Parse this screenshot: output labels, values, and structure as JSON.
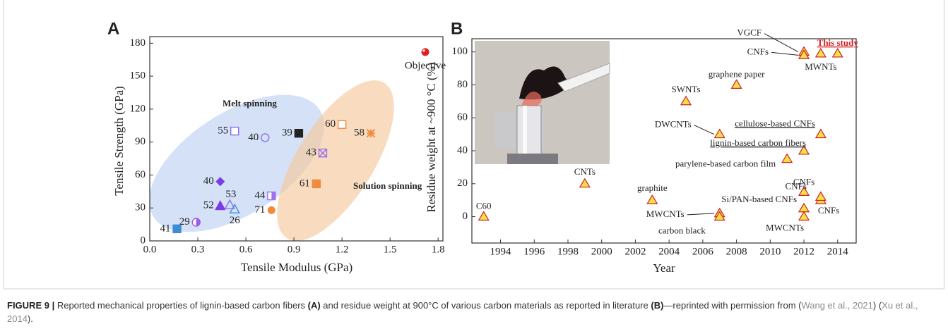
{
  "chart_data": [
    {
      "type": "scatter",
      "panel_label": "A",
      "x_label": "Tensile Modulus (GPa)",
      "y_label": "Tensile Strength (GPa)",
      "xlim": [
        0,
        1.83
      ],
      "ylim": [
        0,
        186
      ],
      "xticks": [
        {
          "value": 0,
          "label": "0.0"
        },
        0.3,
        0.6,
        0.9,
        1.2,
        1.5,
        1.8
      ],
      "yticks": [
        0,
        30,
        60,
        90,
        120,
        150,
        180
      ],
      "annotations": [
        "Melt spinning",
        "Solution spinning"
      ],
      "points": [
        {
          "label": "Objective",
          "x": 1.72,
          "y": 172,
          "marker": "sphere",
          "color": "#e02020"
        },
        {
          "label": "55",
          "x": 0.53,
          "y": 100,
          "marker": "square-open",
          "color": "#8a6cf0"
        },
        {
          "label": "40",
          "x": 0.72,
          "y": 94,
          "marker": "circle-open",
          "color": "#8a6cf0"
        },
        {
          "label": "39",
          "x": 0.93,
          "y": 98,
          "marker": "square",
          "color": "#222222"
        },
        {
          "label": "60",
          "x": 1.2,
          "y": 106,
          "marker": "square-open",
          "color": "#f08a3c"
        },
        {
          "label": "58",
          "x": 1.38,
          "y": 98,
          "marker": "asterisk",
          "color": "#f08a3c"
        },
        {
          "label": "43",
          "x": 1.08,
          "y": 80,
          "marker": "square-x",
          "color": "#9a6cf0"
        },
        {
          "label": "40",
          "x": 0.44,
          "y": 54,
          "marker": "diamond",
          "color": "#7a3ce6"
        },
        {
          "label": "44",
          "x": 0.76,
          "y": 41,
          "marker": "square-half",
          "color": "#a070f0"
        },
        {
          "label": "61",
          "x": 1.04,
          "y": 52,
          "marker": "square",
          "color": "#f08a3c"
        },
        {
          "label": "52",
          "x": 0.44,
          "y": 32,
          "marker": "triangle",
          "color": "#7a3ce6"
        },
        {
          "label": "53",
          "x": 0.5,
          "y": 33,
          "marker": "triangle-open",
          "color": "#8a6cf0"
        },
        {
          "label": "26",
          "x": 0.53,
          "y": 29,
          "marker": "triangle-open",
          "color": "#3c8cd6"
        },
        {
          "label": "71",
          "x": 0.76,
          "y": 28,
          "marker": "circle",
          "color": "#f08a3c"
        },
        {
          "label": "29",
          "x": 0.29,
          "y": 17,
          "marker": "circle-half",
          "color": "#9a5ce6"
        },
        {
          "label": "41",
          "x": 0.17,
          "y": 11,
          "marker": "square",
          "color": "#3c8cd6"
        }
      ]
    },
    {
      "type": "scatter",
      "panel_label": "B",
      "x_label": "Year",
      "y_label": "Residue weight at ~900 °C (%)",
      "xlim": [
        1992.3,
        2015.1
      ],
      "ylim": [
        -16,
        108
      ],
      "xticks": [
        1994,
        1996,
        1998,
        2000,
        2002,
        2004,
        2006,
        2008,
        2010,
        2012,
        2014
      ],
      "yticks": [
        0,
        20,
        40,
        60,
        80,
        100
      ],
      "marker_color": "#f5e04a",
      "marker_edge": "#d02020",
      "points": [
        {
          "label": "C60",
          "x": 1993,
          "y": 0
        },
        {
          "label": "CNTs",
          "x": 1999,
          "y": 20
        },
        {
          "label": "graphite",
          "x": 2003,
          "y": 10
        },
        {
          "label": "SWNTs",
          "x": 2005,
          "y": 70
        },
        {
          "label": "DWCNTs",
          "x": 2007,
          "y": 50
        },
        {
          "label": "graphene paper",
          "x": 2008,
          "y": 80
        },
        {
          "label": "cellulose-based CNFs",
          "x": 2013,
          "y": 50,
          "underline": true
        },
        {
          "label": "lignin-based carbon fibers",
          "x": 2012,
          "y": 40,
          "underline": true
        },
        {
          "label": "parylene-based carbon film",
          "x": 2011,
          "y": 35
        },
        {
          "label": "CNFs",
          "x": 2012,
          "y": 15
        },
        {
          "label": "CNFs",
          "x": 2013,
          "y": 10
        },
        {
          "label": "CNFs",
          "x": 2013,
          "y": 12
        },
        {
          "label": "Si/PAN-based CNFs",
          "x": 2012,
          "y": 5
        },
        {
          "label": "MWCNTs",
          "x": 2012,
          "y": 0
        },
        {
          "label": "MWCNTs",
          "x": 2007,
          "y": 2
        },
        {
          "label": "carbon black",
          "x": 2007,
          "y": 0
        },
        {
          "label": "VGCF",
          "x": 2012,
          "y": 100
        },
        {
          "label": "CNFs",
          "x": 2012,
          "y": 98
        },
        {
          "label": "MWNTs",
          "x": 2013,
          "y": 99
        },
        {
          "label": "This study",
          "x": 2014,
          "y": 99,
          "highlight": true,
          "underline": true
        }
      ]
    }
  ],
  "caption": [
    {
      "text": "FIGURE 9 | ",
      "style": "bold"
    },
    {
      "text": "Reported mechanical properties of lignin-based carbon fibers ",
      "style": "plain"
    },
    {
      "text": "(A)",
      "style": "bold"
    },
    {
      "text": " and residue weight at 900°C of various carbon materials as reported in literature ",
      "style": "plain"
    },
    {
      "text": "(B)",
      "style": "bold"
    },
    {
      "text": "—reprinted with permission from (",
      "style": "plain"
    },
    {
      "text": "Wang et al., 2021",
      "style": "link"
    },
    {
      "text": ") (",
      "style": "plain"
    },
    {
      "text": "Xu et al., 2014",
      "style": "link"
    },
    {
      "text": ").",
      "style": "plain"
    }
  ]
}
